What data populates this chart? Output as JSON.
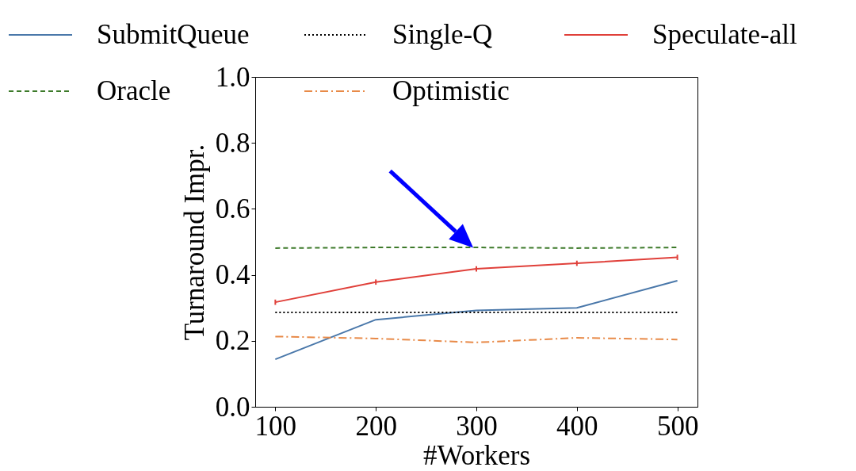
{
  "chart_data": {
    "type": "line",
    "xlabel": "#Workers",
    "ylabel": "Turnaround Impr.",
    "x": [
      100,
      200,
      300,
      400,
      500
    ],
    "series": [
      {
        "name": "SubmitQueue",
        "color": "#4a78aa",
        "line_style": "solid",
        "values": [
          0.144,
          0.264,
          0.292,
          0.3,
          0.382
        ]
      },
      {
        "name": "Single-Q",
        "color": "#000000",
        "line_style": "dotted",
        "values": [
          0.286,
          0.286,
          0.286,
          0.286,
          0.286
        ]
      },
      {
        "name": "Speculate-all",
        "color": "#e0403a",
        "line_style": "solid",
        "values": [
          0.317,
          0.378,
          0.418,
          0.435,
          0.453
        ],
        "errors": [
          0.008,
          0.008,
          0.008,
          0.008,
          0.008
        ]
      },
      {
        "name": "Oracle",
        "color": "#3d7a2a",
        "line_style": "dashed",
        "values": [
          0.481,
          0.483,
          0.483,
          0.481,
          0.483
        ]
      },
      {
        "name": "Optimistic",
        "color": "#e88a48",
        "line_style": "dashdot",
        "values": [
          0.213,
          0.207,
          0.195,
          0.209,
          0.204
        ]
      }
    ],
    "xlim": [
      80,
      520
    ],
    "xticks": [
      100,
      200,
      300,
      400,
      500
    ],
    "ylim": [
      0,
      1
    ],
    "yticks": [
      {
        "value": 0,
        "label": "0.0"
      },
      0.2,
      0.4,
      0.6,
      0.8,
      {
        "value": 1,
        "label": "1.0"
      }
    ],
    "grid": false,
    "legend": "top"
  }
}
